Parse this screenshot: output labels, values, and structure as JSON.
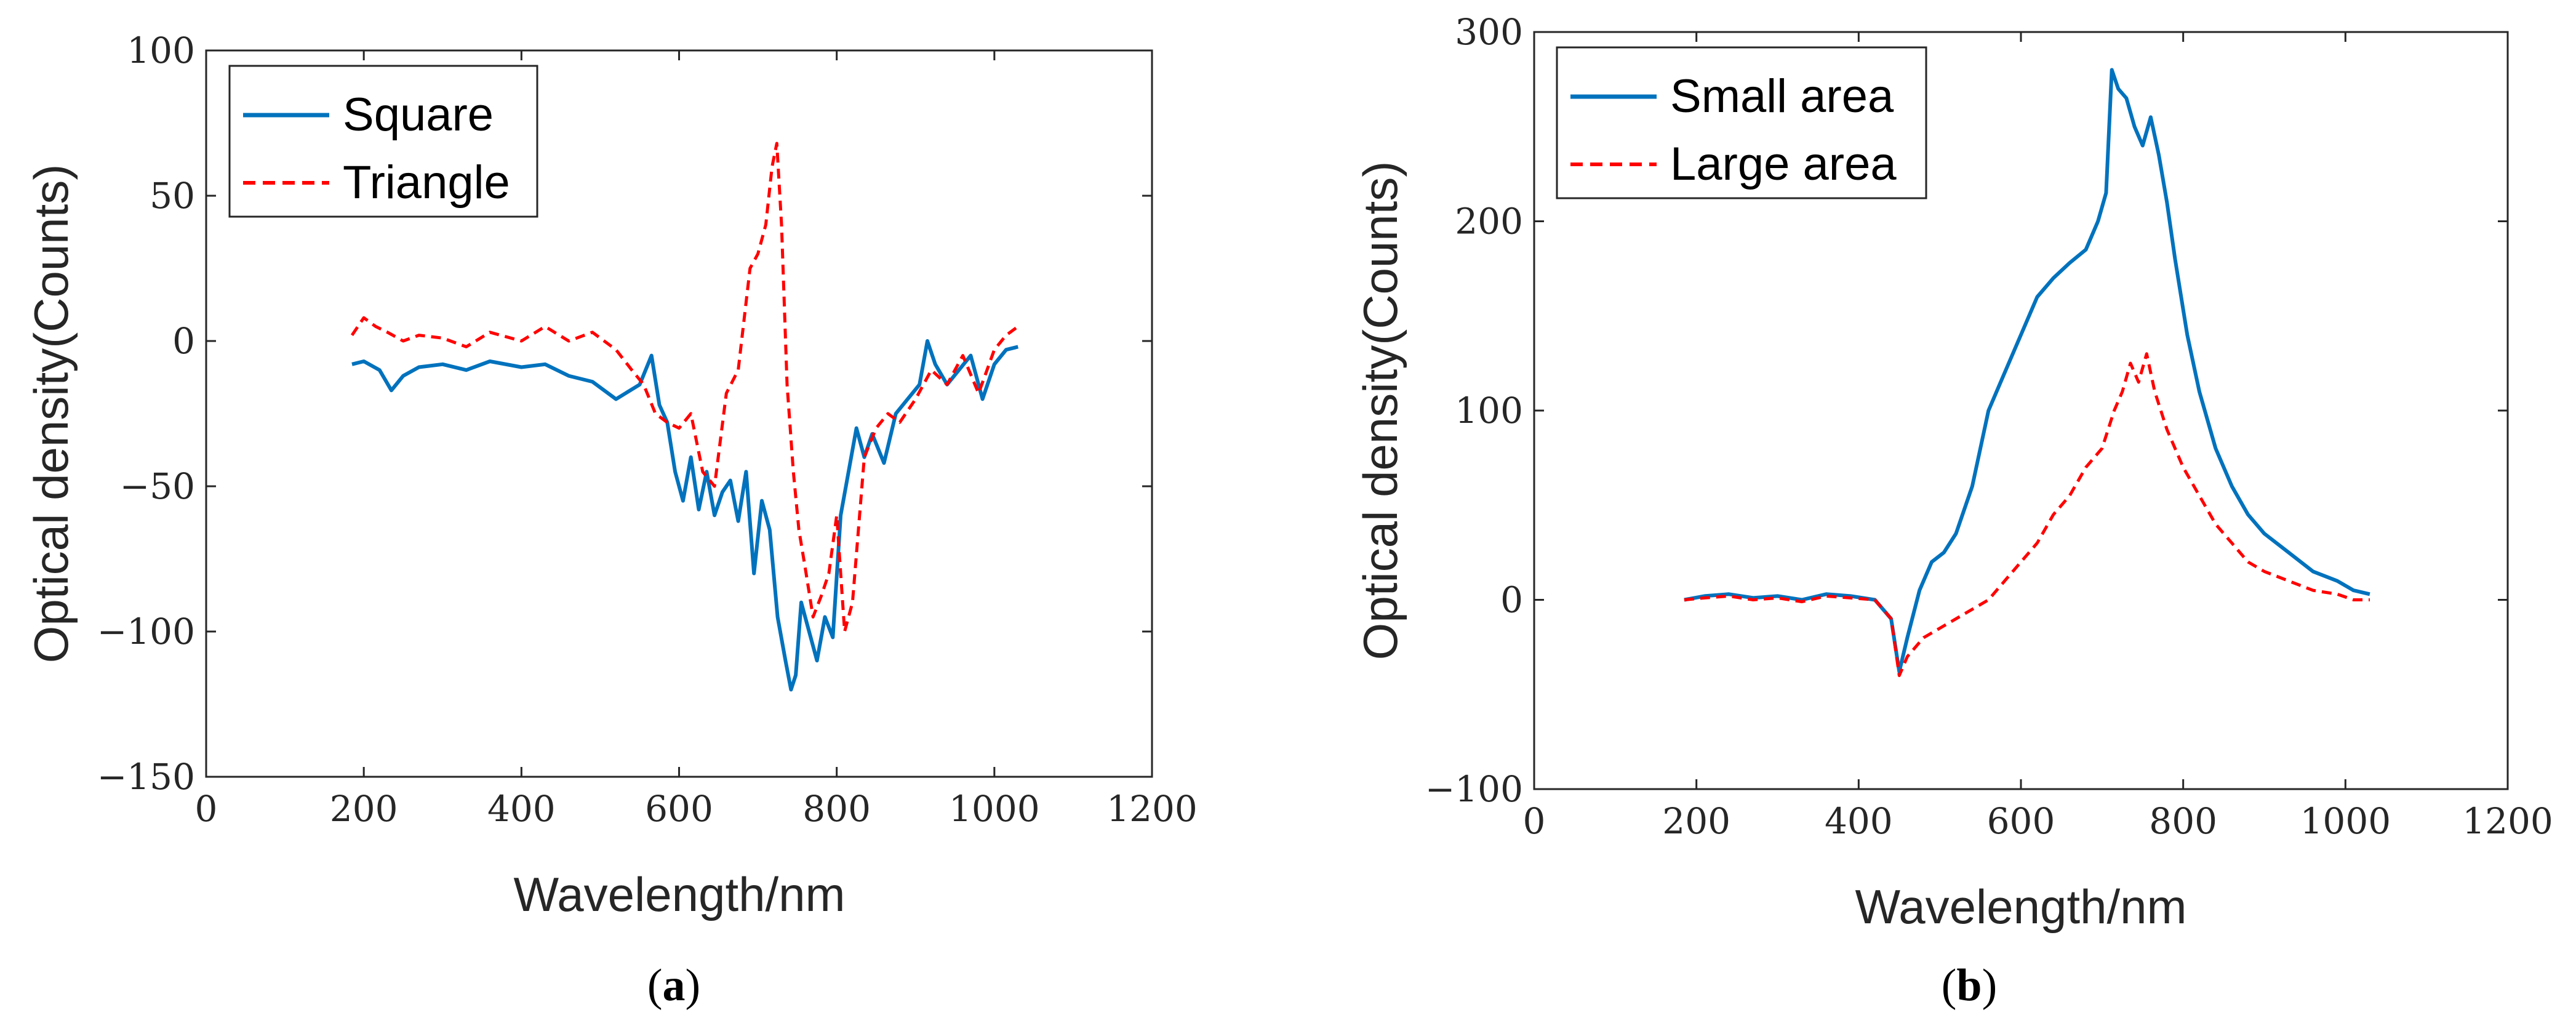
{
  "colors": {
    "blue": "#0072BD",
    "red": "#FF0000",
    "axis": "#262626"
  },
  "chart_data": [
    {
      "type": "line",
      "title": "",
      "xlabel": "Wavelength/nm",
      "ylabel": "Optical density(Counts)",
      "xlim": [
        0,
        1200
      ],
      "ylim": [
        -150,
        100
      ],
      "xticks": [
        0,
        200,
        400,
        600,
        800,
        1000,
        1200
      ],
      "yticks": [
        100,
        50,
        0,
        -50,
        -100,
        -150
      ],
      "xtick_labels": [
        "0",
        "200",
        "400",
        "600",
        "800",
        "1000",
        "1200"
      ],
      "ytick_labels": [
        "100",
        "50",
        "0",
        "−50",
        "−100",
        "−150"
      ],
      "legend_position": "top-left",
      "caption_letter": "a",
      "series": [
        {
          "name": "Square",
          "color": "#0072BD",
          "style": "solid",
          "x": [
            185,
            200,
            220,
            235,
            250,
            270,
            300,
            330,
            360,
            400,
            430,
            460,
            490,
            520,
            550,
            565,
            575,
            585,
            595,
            605,
            615,
            625,
            635,
            645,
            655,
            665,
            675,
            685,
            695,
            705,
            715,
            725,
            735,
            742,
            748,
            755,
            765,
            775,
            785,
            795,
            805,
            815,
            825,
            835,
            845,
            860,
            875,
            890,
            905,
            915,
            925,
            940,
            955,
            970,
            985,
            1000,
            1015,
            1030
          ],
          "y": [
            -8,
            -7,
            -10,
            -17,
            -12,
            -9,
            -8,
            -10,
            -7,
            -9,
            -8,
            -12,
            -14,
            -20,
            -15,
            -5,
            -22,
            -28,
            -45,
            -55,
            -40,
            -58,
            -45,
            -60,
            -52,
            -48,
            -62,
            -45,
            -80,
            -55,
            -65,
            -95,
            -110,
            -120,
            -115,
            -90,
            -100,
            -110,
            -95,
            -102,
            -60,
            -45,
            -30,
            -40,
            -32,
            -42,
            -25,
            -20,
            -15,
            0,
            -8,
            -15,
            -10,
            -5,
            -20,
            -8,
            -3,
            -2
          ]
        },
        {
          "name": "Triangle",
          "color": "#FF0000",
          "style": "dashed",
          "x": [
            185,
            200,
            215,
            230,
            250,
            270,
            300,
            330,
            360,
            400,
            430,
            460,
            490,
            520,
            540,
            555,
            570,
            585,
            600,
            615,
            630,
            645,
            660,
            675,
            690,
            700,
            710,
            718,
            724,
            730,
            737,
            745,
            752,
            760,
            770,
            780,
            790,
            800,
            810,
            820,
            835,
            850,
            865,
            880,
            900,
            920,
            940,
            960,
            980,
            1000,
            1015,
            1030
          ],
          "y": [
            2,
            8,
            5,
            3,
            0,
            2,
            1,
            -2,
            3,
            0,
            5,
            0,
            3,
            -3,
            -10,
            -15,
            -25,
            -28,
            -30,
            -25,
            -45,
            -50,
            -18,
            -10,
            25,
            30,
            40,
            60,
            68,
            40,
            -15,
            -45,
            -65,
            -78,
            -95,
            -88,
            -80,
            -60,
            -100,
            -90,
            -40,
            -30,
            -25,
            -28,
            -20,
            -10,
            -15,
            -5,
            -18,
            -3,
            2,
            5
          ]
        }
      ]
    },
    {
      "type": "line",
      "title": "",
      "xlabel": "Wavelength/nm",
      "ylabel": "Optical density(Counts)",
      "xlim": [
        0,
        1200
      ],
      "ylim": [
        -100,
        300
      ],
      "xticks": [
        0,
        200,
        400,
        600,
        800,
        1000,
        1200
      ],
      "yticks": [
        300,
        200,
        100,
        0,
        -100
      ],
      "xtick_labels": [
        "0",
        "200",
        "400",
        "600",
        "800",
        "1000",
        "1200"
      ],
      "ytick_labels": [
        "300",
        "200",
        "100",
        "0",
        "−100"
      ],
      "legend_position": "top-left",
      "caption_letter": "b",
      "series": [
        {
          "name": "Small area",
          "color": "#0072BD",
          "style": "solid",
          "x": [
            185,
            210,
            240,
            270,
            300,
            330,
            360,
            390,
            420,
            440,
            450,
            460,
            475,
            490,
            505,
            520,
            540,
            560,
            580,
            600,
            620,
            640,
            660,
            680,
            695,
            705,
            712,
            720,
            730,
            740,
            750,
            760,
            770,
            780,
            790,
            805,
            820,
            840,
            860,
            880,
            900,
            930,
            960,
            990,
            1010,
            1030
          ],
          "y": [
            0,
            2,
            3,
            1,
            2,
            0,
            3,
            2,
            0,
            -10,
            -38,
            -20,
            5,
            20,
            25,
            35,
            60,
            100,
            120,
            140,
            160,
            170,
            178,
            185,
            200,
            215,
            280,
            270,
            265,
            250,
            240,
            255,
            235,
            210,
            180,
            140,
            110,
            80,
            60,
            45,
            35,
            25,
            15,
            10,
            5,
            3
          ]
        },
        {
          "name": "Large area",
          "color": "#FF0000",
          "style": "dashed",
          "x": [
            185,
            210,
            240,
            270,
            300,
            330,
            360,
            390,
            420,
            440,
            450,
            460,
            480,
            500,
            520,
            540,
            560,
            580,
            600,
            620,
            640,
            660,
            680,
            700,
            715,
            725,
            735,
            745,
            755,
            765,
            780,
            800,
            820,
            840,
            860,
            880,
            900,
            930,
            960,
            990,
            1010,
            1030
          ],
          "y": [
            0,
            1,
            2,
            0,
            1,
            -1,
            2,
            1,
            0,
            -10,
            -40,
            -30,
            -20,
            -15,
            -10,
            -5,
            0,
            10,
            20,
            30,
            45,
            55,
            70,
            80,
            100,
            110,
            125,
            115,
            130,
            110,
            90,
            70,
            55,
            40,
            30,
            20,
            15,
            10,
            5,
            3,
            0,
            0
          ]
        }
      ]
    }
  ]
}
